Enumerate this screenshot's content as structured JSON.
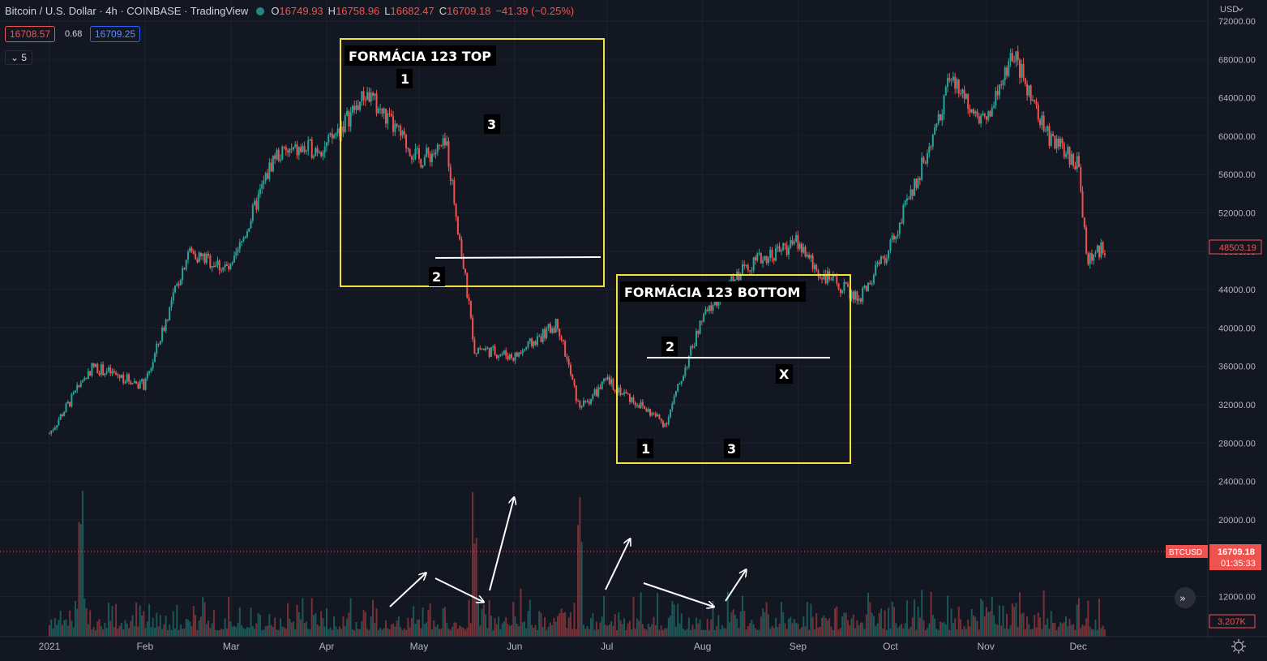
{
  "header": {
    "title": "Bitcoin / U.S. Dollar · 4h · COINBASE · TradingView",
    "open_label": "O",
    "open": "16749.93",
    "high_label": "H",
    "high": "16758.96",
    "low_label": "L",
    "low": "16682.47",
    "close_label": "C",
    "close": "16709.18",
    "change": "−41.39 (−0.25%)",
    "sell_price": "16708.57",
    "spread": "0.68",
    "buy_price": "16709.25",
    "indicator_count": "5"
  },
  "axis": {
    "currency": "USD",
    "currency_icon": "chevron-down-icon",
    "ticks": [
      "72000.00",
      "68000.00",
      "64000.00",
      "60000.00",
      "56000.00",
      "52000.00",
      "48000.00",
      "44000.00",
      "40000.00",
      "36000.00",
      "32000.00",
      "28000.00",
      "24000.00",
      "20000.00",
      "12000.00"
    ],
    "price_tag": "48503.19",
    "symbol_tag": "BTCUSD",
    "last_price": "16709.18",
    "countdown": "01:35:33",
    "volume_tag": "3.207K"
  },
  "x_axis": {
    "months": [
      "2021",
      "Feb",
      "Mar",
      "Apr",
      "May",
      "Jun",
      "Jul",
      "Aug",
      "Sep",
      "Oct",
      "Nov",
      "Dec"
    ]
  },
  "annotations": {
    "top_title": "FORMÁCIA 123 TOP",
    "bottom_title": "FORMÁCIA 123 BOTTOM",
    "top_points": [
      "1",
      "2",
      "3"
    ],
    "bottom_points": [
      "1",
      "2",
      "3"
    ],
    "x_mark": "X"
  },
  "colors": {
    "background": "#131722",
    "up": "#26a69a",
    "down": "#ef5350",
    "box": "#f5e13b",
    "annotation_line": "#ffffff"
  },
  "chart_data": {
    "type": "candlestick",
    "symbol": "BTCUSD",
    "interval": "4h",
    "ylim": [
      18000,
      72000
    ],
    "x": [
      "2021-01-01",
      "2021-01-15",
      "2021-02-01",
      "2021-02-15",
      "2021-03-01",
      "2021-03-15",
      "2021-04-01",
      "2021-04-14",
      "2021-05-01",
      "2021-05-10",
      "2021-05-19",
      "2021-06-01",
      "2021-06-15",
      "2021-06-22",
      "2021-07-01",
      "2021-07-20",
      "2021-08-01",
      "2021-08-15",
      "2021-09-01",
      "2021-09-07",
      "2021-09-21",
      "2021-10-01",
      "2021-10-15",
      "2021-10-20",
      "2021-11-01",
      "2021-11-10",
      "2021-11-20",
      "2021-12-01",
      "2021-12-04",
      "2021-12-10"
    ],
    "close": [
      29000,
      36000,
      34000,
      48000,
      46000,
      58000,
      59000,
      64500,
      57500,
      59000,
      38000,
      37000,
      40500,
      31500,
      34500,
      30000,
      41000,
      46500,
      49000,
      46000,
      43000,
      48500,
      60000,
      66000,
      61500,
      68500,
      60500,
      57000,
      47000,
      48500
    ],
    "volume_spikes": [
      "2021-01-11",
      "2021-05-19",
      "2021-06-22"
    ]
  }
}
